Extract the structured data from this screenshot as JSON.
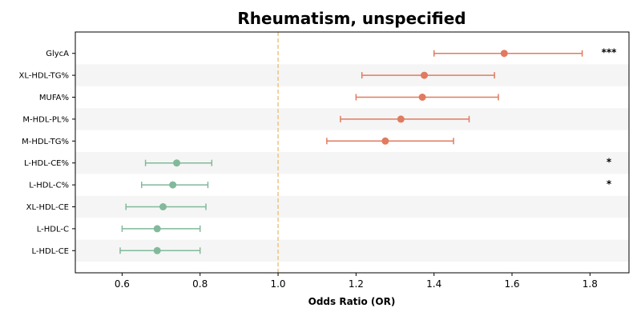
{
  "chart_data": {
    "type": "forest",
    "title": "Rheumatism, unspecified",
    "xlabel": "Odds Ratio (OR)",
    "ylabel": "",
    "xlim": [
      0.48,
      1.9
    ],
    "xticks": [
      "0.6",
      "0.8",
      "1.0",
      "1.2",
      "1.4",
      "1.6",
      "1.8"
    ],
    "reference_line": 1.0,
    "grid": false,
    "colors": {
      "risk": "#e07b5f",
      "protective": "#82b99a",
      "reference_line": "#f2c27d",
      "band": "#f5f5f5"
    },
    "rows": [
      {
        "label": "GlycA",
        "or": 1.58,
        "lo": 1.4,
        "hi": 1.78,
        "sig": "***"
      },
      {
        "label": "XL-HDL-TG%",
        "or": 1.375,
        "lo": 1.215,
        "hi": 1.555,
        "sig": ""
      },
      {
        "label": "MUFA%",
        "or": 1.37,
        "lo": 1.2,
        "hi": 1.565,
        "sig": ""
      },
      {
        "label": "M-HDL-PL%",
        "or": 1.315,
        "lo": 1.16,
        "hi": 1.49,
        "sig": ""
      },
      {
        "label": "M-HDL-TG%",
        "or": 1.275,
        "lo": 1.125,
        "hi": 1.45,
        "sig": ""
      },
      {
        "label": "L-HDL-CE%",
        "or": 0.74,
        "lo": 0.66,
        "hi": 0.83,
        "sig": "*"
      },
      {
        "label": "L-HDL-C%",
        "or": 0.73,
        "lo": 0.65,
        "hi": 0.82,
        "sig": "*"
      },
      {
        "label": "XL-HDL-CE",
        "or": 0.705,
        "lo": 0.61,
        "hi": 0.815,
        "sig": ""
      },
      {
        "label": "L-HDL-C",
        "or": 0.69,
        "lo": 0.6,
        "hi": 0.8,
        "sig": ""
      },
      {
        "label": "L-HDL-CE",
        "or": 0.69,
        "lo": 0.595,
        "hi": 0.8,
        "sig": ""
      }
    ]
  }
}
